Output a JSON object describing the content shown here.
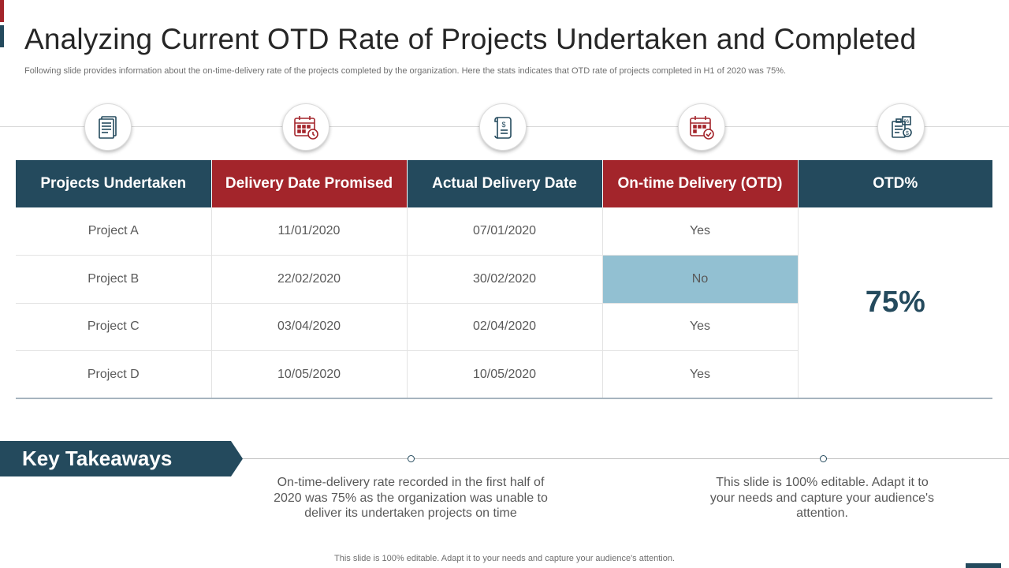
{
  "slide": {
    "title": "Analyzing Current OTD Rate of Projects Undertaken and Completed",
    "subtitle": "Following slide provides information about the on-time-delivery rate of the projects completed by the organization. Here the stats indicates that OTD rate of projects completed in H1 of 2020 was 75%."
  },
  "icons": [
    "document-icon",
    "calendar-clock-icon",
    "invoice-scroll-icon",
    "calendar-check-icon",
    "finance-report-icon"
  ],
  "colors": {
    "teal": "#244a5d",
    "red": "#a3252b",
    "highlight": "#92c0d2"
  },
  "table": {
    "headers": [
      "Projects Undertaken",
      "Delivery Date Promised",
      "Actual Delivery Date",
      "On-time Delivery (OTD)",
      "OTD%"
    ],
    "rows": [
      [
        "Project A",
        "11/01/2020",
        "07/01/2020",
        "Yes"
      ],
      [
        "Project B",
        "22/02/2020",
        "30/02/2020",
        "No"
      ],
      [
        "Project C",
        "03/04/2020",
        "02/04/2020",
        "Yes"
      ],
      [
        "Project D",
        "10/05/2020",
        "10/05/2020",
        "Yes"
      ]
    ],
    "otd_percent": "75%"
  },
  "takeaways": {
    "label": "Key Takeaways",
    "items": [
      "On-time-delivery rate recorded in the first half of 2020 was 75% as the organization was unable to deliver its undertaken projects on time",
      "This slide is 100% editable. Adapt it to your needs and capture your audience's attention."
    ]
  },
  "footer": "This slide is 100% editable. Adapt it to your needs and capture your audience's attention."
}
